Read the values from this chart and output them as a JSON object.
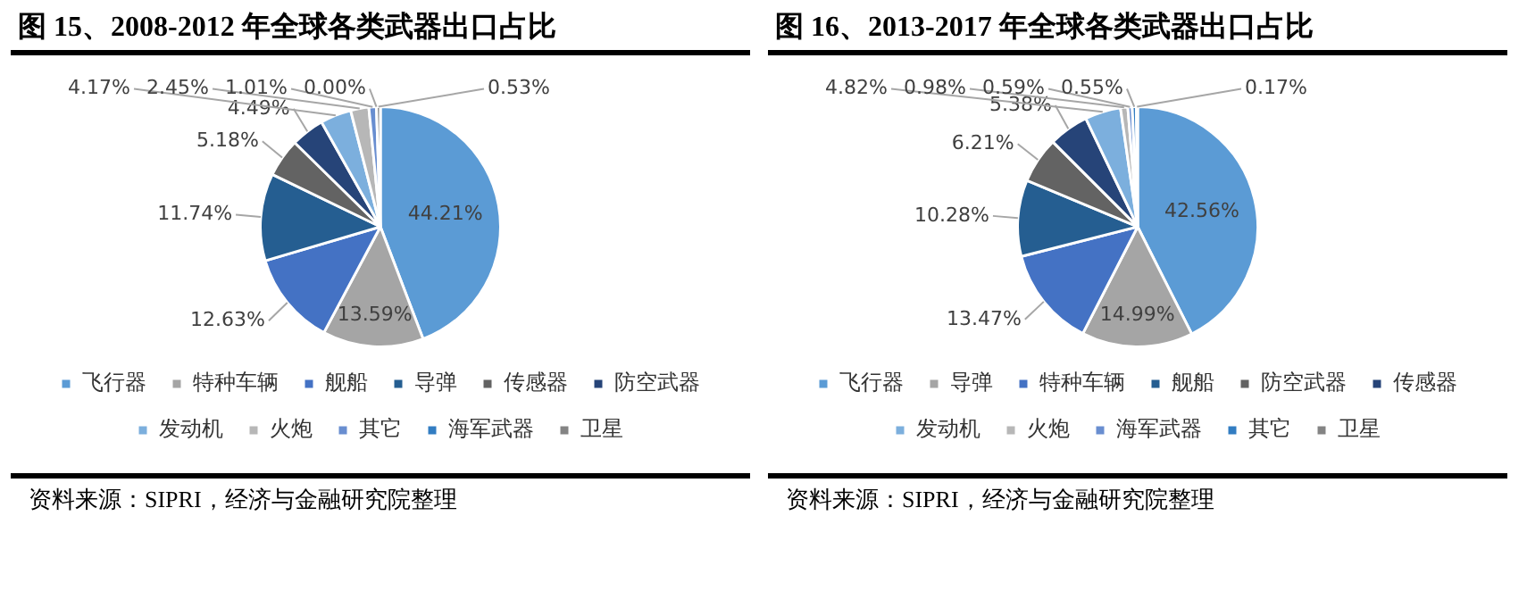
{
  "chart_data": [
    {
      "type": "pie",
      "title": "图 15、2008-2012 年全球各类武器出口占比",
      "categories": [
        "飞行器",
        "特种车辆",
        "舰船",
        "导弹",
        "传感器",
        "防空武器",
        "发动机",
        "火炮",
        "其它",
        "海军武器",
        "卫星"
      ],
      "values": [
        44.21,
        13.59,
        12.63,
        11.74,
        5.18,
        4.49,
        4.17,
        2.45,
        1.01,
        0.0,
        0.53
      ],
      "value_labels": [
        "44.21%",
        "13.59%",
        "12.63%",
        "11.74%",
        "5.18%",
        "4.49%",
        "4.17%",
        "2.45%",
        "1.01%",
        "0.00%",
        "0.53%"
      ],
      "colors": [
        "#5b9bd5",
        "#a5a5a5",
        "#4472c4",
        "#255e91",
        "#636363",
        "#264478",
        "#7cafdd",
        "#b7b7b7",
        "#698ed0",
        "#327dc2",
        "#848484"
      ],
      "legend": "bottom",
      "annotations": [
        "资料来源：SIPRI，经济与金融研究院整理"
      ]
    },
    {
      "type": "pie",
      "title": "图 16、2013-2017 年全球各类武器出口占比",
      "categories": [
        "飞行器",
        "导弹",
        "特种车辆",
        "舰船",
        "防空武器",
        "传感器",
        "发动机",
        "火炮",
        "海军武器",
        "其它",
        "卫星"
      ],
      "values": [
        42.56,
        14.99,
        13.47,
        10.28,
        6.21,
        5.38,
        4.82,
        0.98,
        0.59,
        0.55,
        0.17
      ],
      "value_labels": [
        "42.56%",
        "14.99%",
        "13.47%",
        "10.28%",
        "6.21%",
        "5.38%",
        "4.82%",
        "0.98%",
        "0.59%",
        "0.55%",
        "0.17%"
      ],
      "colors": [
        "#5b9bd5",
        "#a5a5a5",
        "#4472c4",
        "#255e91",
        "#636363",
        "#264478",
        "#7cafdd",
        "#b7b7b7",
        "#698ed0",
        "#327dc2",
        "#848484"
      ],
      "legend": "bottom",
      "annotations": [
        "资料来源：SIPRI，经济与金融研究院整理"
      ]
    }
  ]
}
